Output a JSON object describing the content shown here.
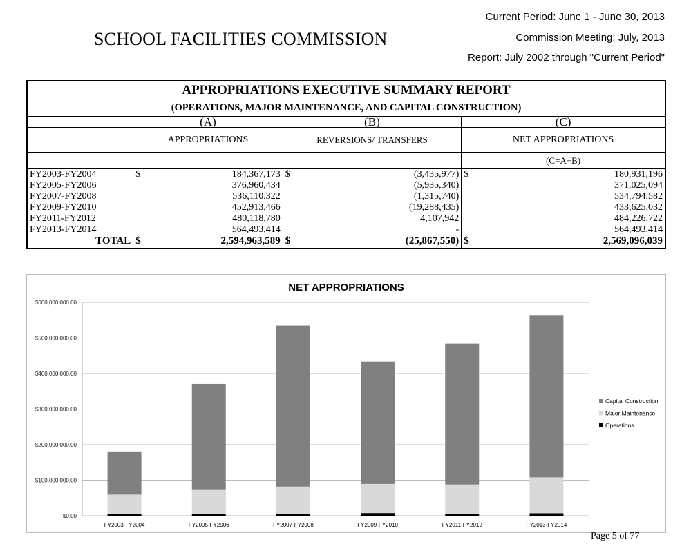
{
  "header": {
    "organization": "SCHOOL FACILITIES COMMISSION",
    "current_period": "Current Period: June 1 - June 30, 2013",
    "meeting": "Commission Meeting: July, 2013",
    "report_range": "Report: July 2002 through \"Current Period\""
  },
  "table": {
    "title": "APPROPRIATIONS EXECUTIVE SUMMARY REPORT",
    "subtitle": "(OPERATIONS, MAJOR MAINTENANCE, AND CAPITAL CONSTRUCTION)",
    "col_letters": [
      "(A)",
      "(B)",
      "(C)"
    ],
    "col_headers": [
      "APPROPRIATIONS",
      "REVERSIONS/ TRANSFERS",
      "NET APPROPRIATIONS"
    ],
    "formula": "(C=A+B)",
    "currency": "$",
    "rows": [
      {
        "period": "FY2003-FY2004",
        "a": "184,367,173",
        "b": "(3,435,977)",
        "c": "180,931,196"
      },
      {
        "period": "FY2005-FY2006",
        "a": "376,960,434",
        "b": "(5,935,340)",
        "c": "371,025,094"
      },
      {
        "period": "FY2007-FY2008",
        "a": "536,110,322",
        "b": "(1,315,740)",
        "c": "534,794,582"
      },
      {
        "period": "FY2009-FY2010",
        "a": "452,913,466",
        "b": "(19,288,435)",
        "c": "433,625,032"
      },
      {
        "period": "FY2011-FY2012",
        "a": "480,118,780",
        "b": "4,107,942",
        "c": "484,226,722"
      },
      {
        "period": "FY2013-FY2014",
        "a": "564,493,414",
        "b": "-",
        "c": "564,493,414"
      }
    ],
    "total": {
      "label": "TOTAL",
      "a": "2,594,963,589",
      "b": "(25,867,550)",
      "c": "2,569,096,039"
    }
  },
  "chart_data": {
    "type": "bar",
    "stacked": true,
    "title": "NET APPROPRIATIONS",
    "xlabel": "",
    "ylabel": "",
    "ylim": [
      0,
      600000000
    ],
    "yticks": [
      0,
      100000000,
      200000000,
      300000000,
      400000000,
      500000000,
      600000000
    ],
    "ytick_labels": [
      "$0.00",
      "$100,000,000.00",
      "$200,000,000.00",
      "$300,000,000.00",
      "$400,000,000.00",
      "$500,000,000.00",
      "$600,000,000.00"
    ],
    "categories": [
      "FY2003-FY2004",
      "FY2005-FY2006",
      "FY2007-FY2008",
      "FY2009-FY2010",
      "FY2011-FY2012",
      "FY2013-FY2014"
    ],
    "series": [
      {
        "name": "Operations",
        "color": "#000000",
        "values": [
          4500000,
          4500000,
          6000000,
          7500000,
          6000000,
          7000000
        ]
      },
      {
        "name": "Major Maintenance",
        "color": "#d9d9d9",
        "values": [
          55000000,
          68000000,
          76000000,
          82000000,
          82000000,
          101000000
        ]
      },
      {
        "name": "Capital Construction",
        "color": "#808080",
        "values": [
          121400000,
          298500000,
          452800000,
          344100000,
          396200000,
          456500000
        ]
      }
    ],
    "legend_order": [
      "Capital Construction",
      "Major Maintenance",
      "Operations"
    ],
    "legend_position": "right",
    "grid": true
  },
  "footer": {
    "page": "Page 5 of 77"
  }
}
